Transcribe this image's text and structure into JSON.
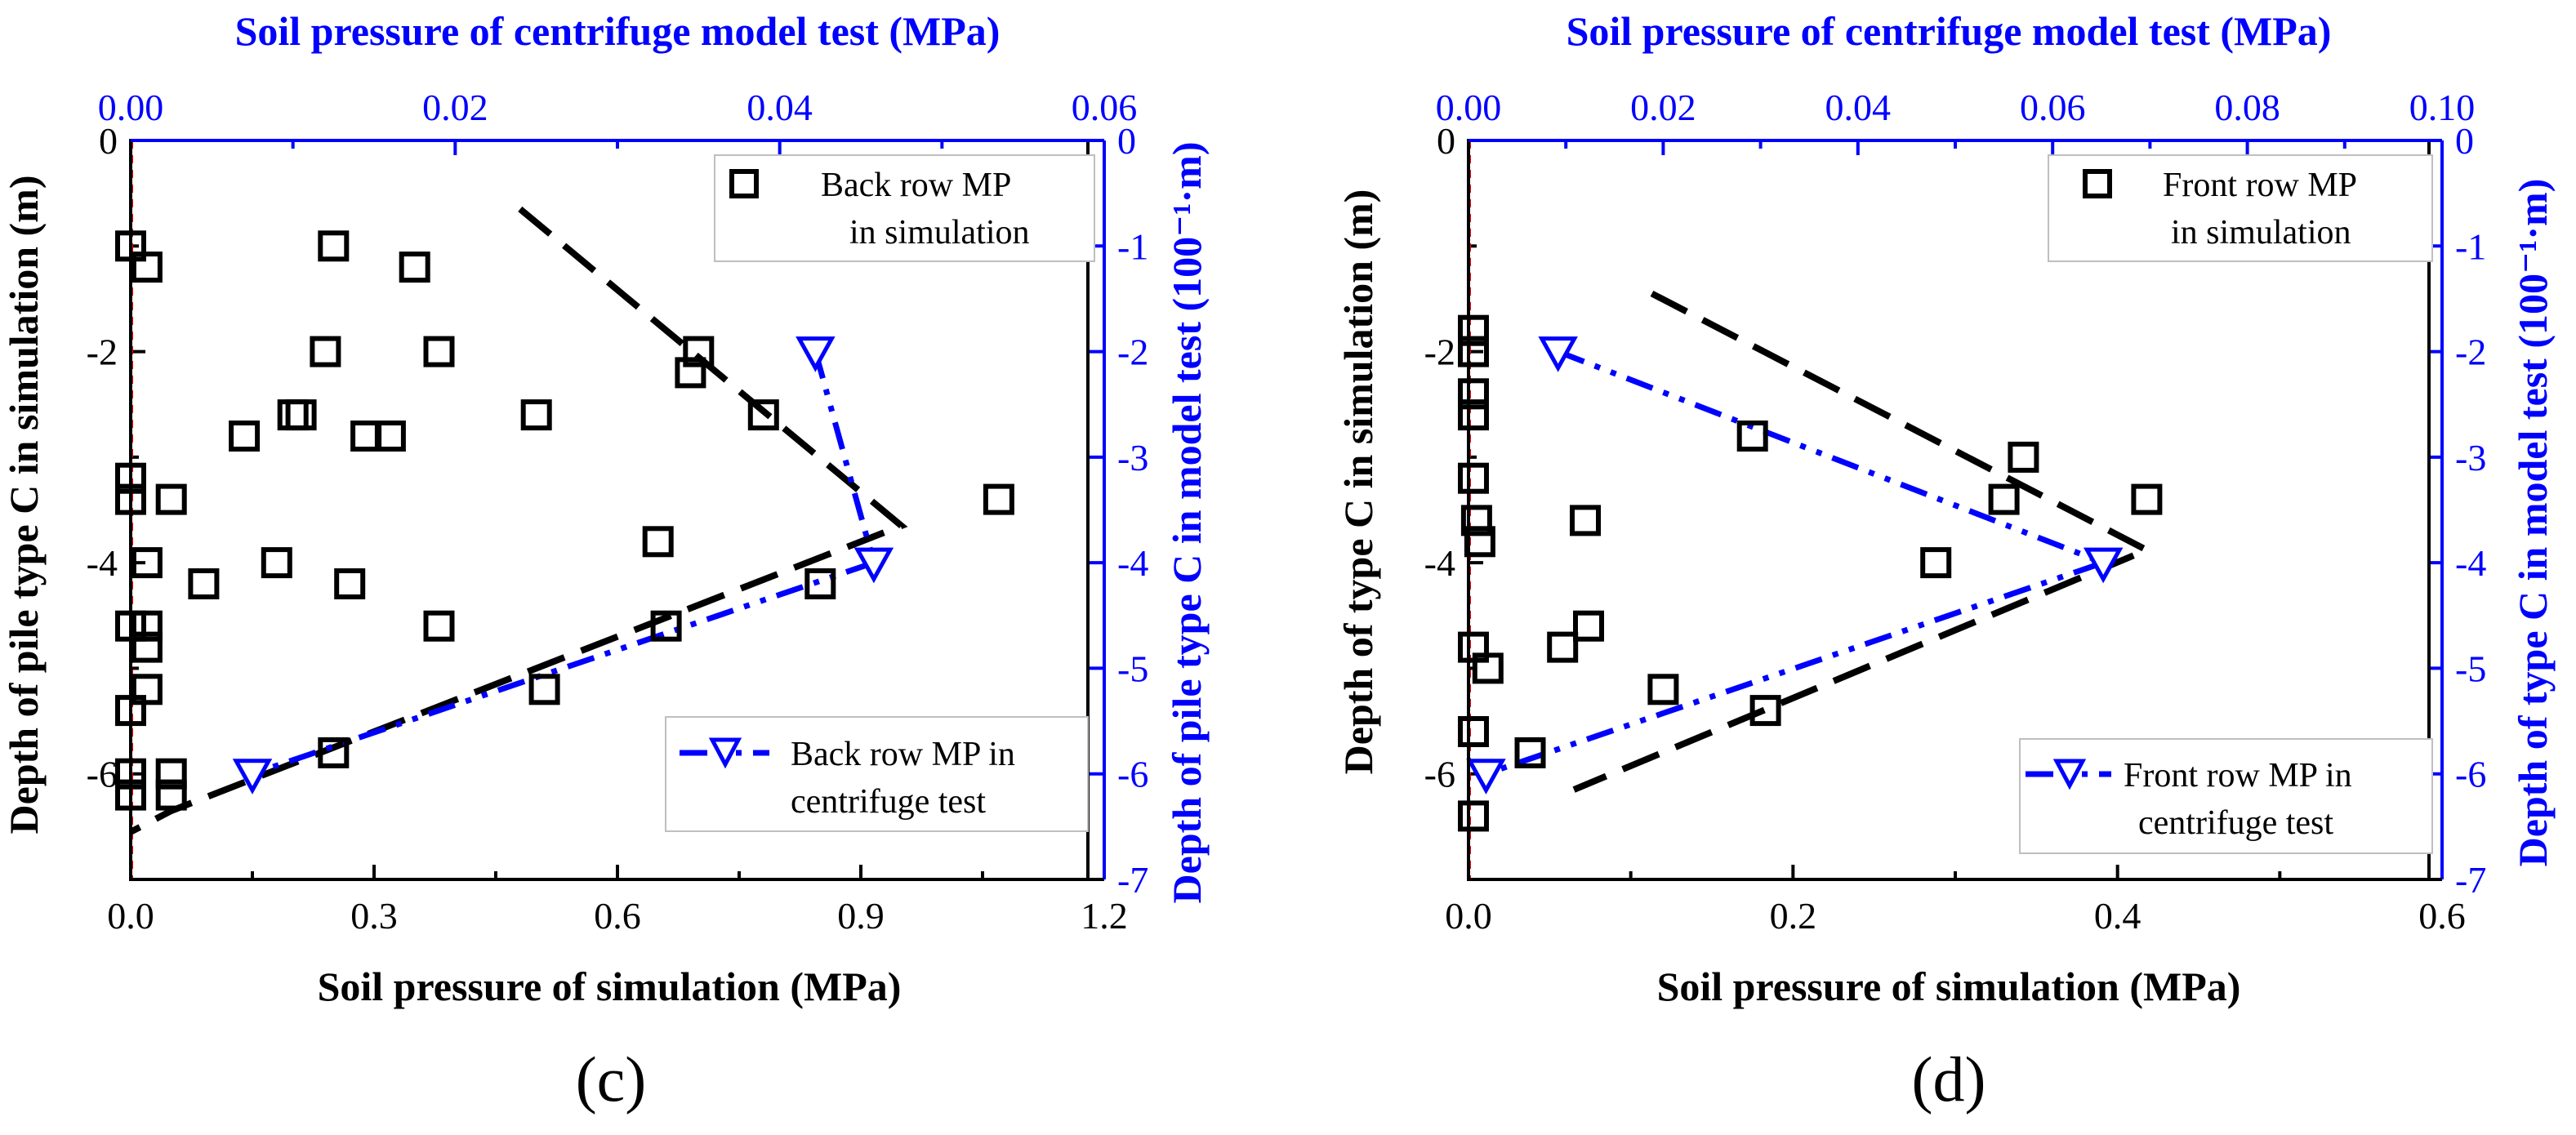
{
  "chart_data": [
    {
      "type": "scatter",
      "panel_label": "(c)",
      "title": "",
      "xlabel": "Soil pressure of  simulation (MPa)",
      "ylabel": "Depth of pile type C in simulation (m)",
      "x2label": "Soil pressure of centrifuge model test (MPa)",
      "y2label": "Depth of pile type C in model test (100⁻¹·m)",
      "xlim": [
        0,
        1.2
      ],
      "ylim": [
        -7,
        0
      ],
      "x2lim": [
        0,
        0.06
      ],
      "y2lim": [
        -7,
        0
      ],
      "xticks": [
        "0.0",
        "0.3",
        "0.6",
        "0.9",
        "1.2"
      ],
      "yticks": [
        "0",
        "-2",
        "-4",
        "-6"
      ],
      "x2ticks": [
        "0.00",
        "0.02",
        "0.04",
        "0.06"
      ],
      "y2ticks": [
        "0",
        "-1",
        "-2",
        "-3",
        "-4",
        "-5",
        "-6",
        "-7"
      ],
      "grid": false,
      "series": [
        {
          "name": "Back row MP in simulation",
          "marker": "square",
          "axes": "bottom-left",
          "points": [
            [
              0.0,
              -1.0
            ],
            [
              0.02,
              -1.2
            ],
            [
              0.0,
              -3.2
            ],
            [
              0.0,
              -3.4
            ],
            [
              0.05,
              -3.4
            ],
            [
              0.02,
              -4.0
            ],
            [
              0.0,
              -4.6
            ],
            [
              0.02,
              -4.6
            ],
            [
              0.02,
              -4.8
            ],
            [
              0.02,
              -5.2
            ],
            [
              0.0,
              -5.4
            ],
            [
              0.0,
              -6.0
            ],
            [
              0.05,
              -6.0
            ],
            [
              0.05,
              -6.2
            ],
            [
              0.0,
              -6.2
            ],
            [
              0.25,
              -1.0
            ],
            [
              0.35,
              -1.2
            ],
            [
              0.24,
              -2.0
            ],
            [
              0.38,
              -2.0
            ],
            [
              0.14,
              -2.8
            ],
            [
              0.2,
              -2.6
            ],
            [
              0.21,
              -2.6
            ],
            [
              0.29,
              -2.8
            ],
            [
              0.32,
              -2.8
            ],
            [
              0.5,
              -2.6
            ],
            [
              0.7,
              -2.0
            ],
            [
              0.69,
              -2.2
            ],
            [
              0.78,
              -2.6
            ],
            [
              1.07,
              -3.4
            ],
            [
              0.18,
              -4.0
            ],
            [
              0.09,
              -4.2
            ],
            [
              0.27,
              -4.2
            ],
            [
              0.38,
              -4.6
            ],
            [
              0.65,
              -3.8
            ],
            [
              0.66,
              -4.6
            ],
            [
              0.51,
              -5.2
            ],
            [
              0.85,
              -4.2
            ],
            [
              0.25,
              -5.8
            ]
          ]
        },
        {
          "name": "Back row MP in centrifuge  test",
          "marker": "triangle-down",
          "axes": "top-right",
          "points": [
            [
              0.0422,
              -2.0
            ],
            [
              0.0458,
              -4.0
            ],
            [
              0.0075,
              -6.0
            ]
          ]
        },
        {
          "name": "Back row simulation fit",
          "style": "dashed",
          "axes": "bottom-left",
          "points": [
            [
              0.48,
              -0.65
            ],
            [
              0.95,
              -3.65
            ],
            [
              0.05,
              -6.35
            ],
            [
              0.0,
              -6.55
            ]
          ]
        },
        {
          "name": "Back row centrifuge fit",
          "style": "dash-dot-dot",
          "axes": "top-right",
          "points": [
            [
              0.0422,
              -2.0
            ],
            [
              0.0458,
              -4.0
            ],
            [
              0.0075,
              -6.0
            ]
          ]
        }
      ],
      "legend": [
        {
          "label_line1": "Back row MP",
          "label_line2": "in simulation",
          "position": "top-right"
        },
        {
          "label_line1": "Back row MP in",
          "label_line2": "centrifuge  test",
          "position": "bottom-right"
        }
      ]
    },
    {
      "type": "scatter",
      "panel_label": "(d)",
      "title": "",
      "xlabel": "Soil pressure of  simulation (MPa)",
      "ylabel": "Depth of type C in simulation (m)",
      "x2label": "Soil pressure of centrifuge model test (MPa)",
      "y2label": "Depth of type C in model test (100⁻¹·m)",
      "xlim": [
        0,
        0.6
      ],
      "ylim": [
        -7,
        0
      ],
      "x2lim": [
        0,
        0.1
      ],
      "y2lim": [
        -7,
        0
      ],
      "xticks": [
        "0.0",
        "0.2",
        "0.4",
        "0.6"
      ],
      "yticks": [
        "0",
        "-2",
        "-4",
        "-6"
      ],
      "x2ticks": [
        "0.00",
        "0.02",
        "0.04",
        "0.06",
        "0.08",
        "0.10"
      ],
      "y2ticks": [
        "0",
        "-1",
        "-2",
        "-3",
        "-4",
        "-5",
        "-6",
        "-7"
      ],
      "grid": false,
      "series": [
        {
          "name": "Front row MP in simulation",
          "marker": "square",
          "axes": "bottom-left",
          "points": [
            [
              0.003,
              -1.8
            ],
            [
              0.003,
              -2.0
            ],
            [
              0.003,
              -2.4
            ],
            [
              0.003,
              -2.6
            ],
            [
              0.003,
              -3.2
            ],
            [
              0.005,
              -3.6
            ],
            [
              0.007,
              -3.8
            ],
            [
              0.003,
              -4.8
            ],
            [
              0.012,
              -5.0
            ],
            [
              0.003,
              -5.6
            ],
            [
              0.003,
              -6.4
            ],
            [
              0.038,
              -5.8
            ],
            [
              0.072,
              -3.6
            ],
            [
              0.074,
              -4.6
            ],
            [
              0.058,
              -4.8
            ],
            [
              0.12,
              -5.2
            ],
            [
              0.175,
              -2.8
            ],
            [
              0.183,
              -5.4
            ],
            [
              0.288,
              -4.0
            ],
            [
              0.33,
              -3.4
            ],
            [
              0.342,
              -3.0
            ],
            [
              0.418,
              -3.4
            ]
          ]
        },
        {
          "name": "Front row MP in centrifuge  test",
          "marker": "triangle-down",
          "axes": "top-right",
          "points": [
            [
              0.0092,
              -2.0
            ],
            [
              0.0652,
              -4.0
            ],
            [
              0.0018,
              -6.0
            ]
          ]
        },
        {
          "name": "Front row simulation fit",
          "style": "dashed",
          "axes": "bottom-left",
          "points": [
            [
              0.113,
              -1.45
            ],
            [
              0.418,
              -3.88
            ],
            [
              0.065,
              -6.15
            ]
          ]
        },
        {
          "name": "Front row centrifuge fit",
          "style": "dash-dot-dot",
          "axes": "top-right",
          "points": [
            [
              0.0092,
              -2.0
            ],
            [
              0.0652,
              -4.0
            ],
            [
              0.0018,
              -6.0
            ]
          ]
        }
      ],
      "legend": [
        {
          "label_line1": "Front row MP",
          "label_line2": "in simulation",
          "position": "top-right"
        },
        {
          "label_line1": "Front row MP in",
          "label_line2": "centrifuge  test",
          "position": "bottom-right"
        }
      ]
    }
  ],
  "colors": {
    "primary_axis": "#000000",
    "secondary_axis": "#0000ff",
    "zero_line": "#ff0000"
  }
}
